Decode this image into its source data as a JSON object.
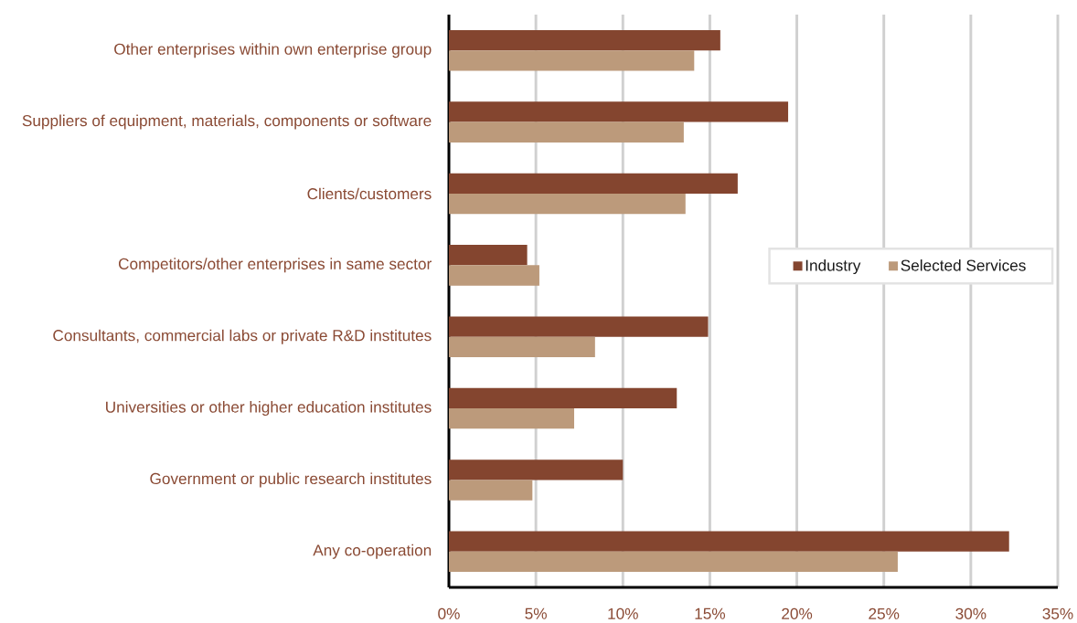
{
  "chart_data": {
    "type": "bar",
    "orientation": "horizontal",
    "categories": [
      "Other enterprises within own enterprise group",
      "Suppliers of equipment, materials, components or software",
      "Clients/customers",
      "Competitors/other enterprises in same sector",
      "Consultants, commercial labs or private R&D institutes",
      "Universities or other higher education institutes",
      "Government or public research institutes",
      "Any co-operation"
    ],
    "series": [
      {
        "name": "Industry",
        "color": "#84452f",
        "values": [
          15.6,
          19.5,
          16.6,
          4.5,
          14.9,
          13.1,
          10.0,
          32.2
        ]
      },
      {
        "name": "Selected Services",
        "color": "#bc9a7b",
        "values": [
          14.1,
          13.5,
          13.6,
          5.2,
          8.4,
          7.2,
          4.8,
          25.8
        ]
      }
    ],
    "xlim": [
      0,
      35
    ],
    "xticks": [
      {
        "value": 0,
        "label": "0%"
      },
      {
        "value": 5,
        "label": "5%"
      },
      {
        "value": 10,
        "label": "10%"
      },
      {
        "value": 15,
        "label": "15%"
      },
      {
        "value": 20,
        "label": "20%"
      },
      {
        "value": 25,
        "label": "25%"
      },
      {
        "value": 30,
        "label": "30%"
      },
      {
        "value": 35,
        "label": "35%"
      }
    ],
    "grid": "x",
    "legend": "right"
  }
}
